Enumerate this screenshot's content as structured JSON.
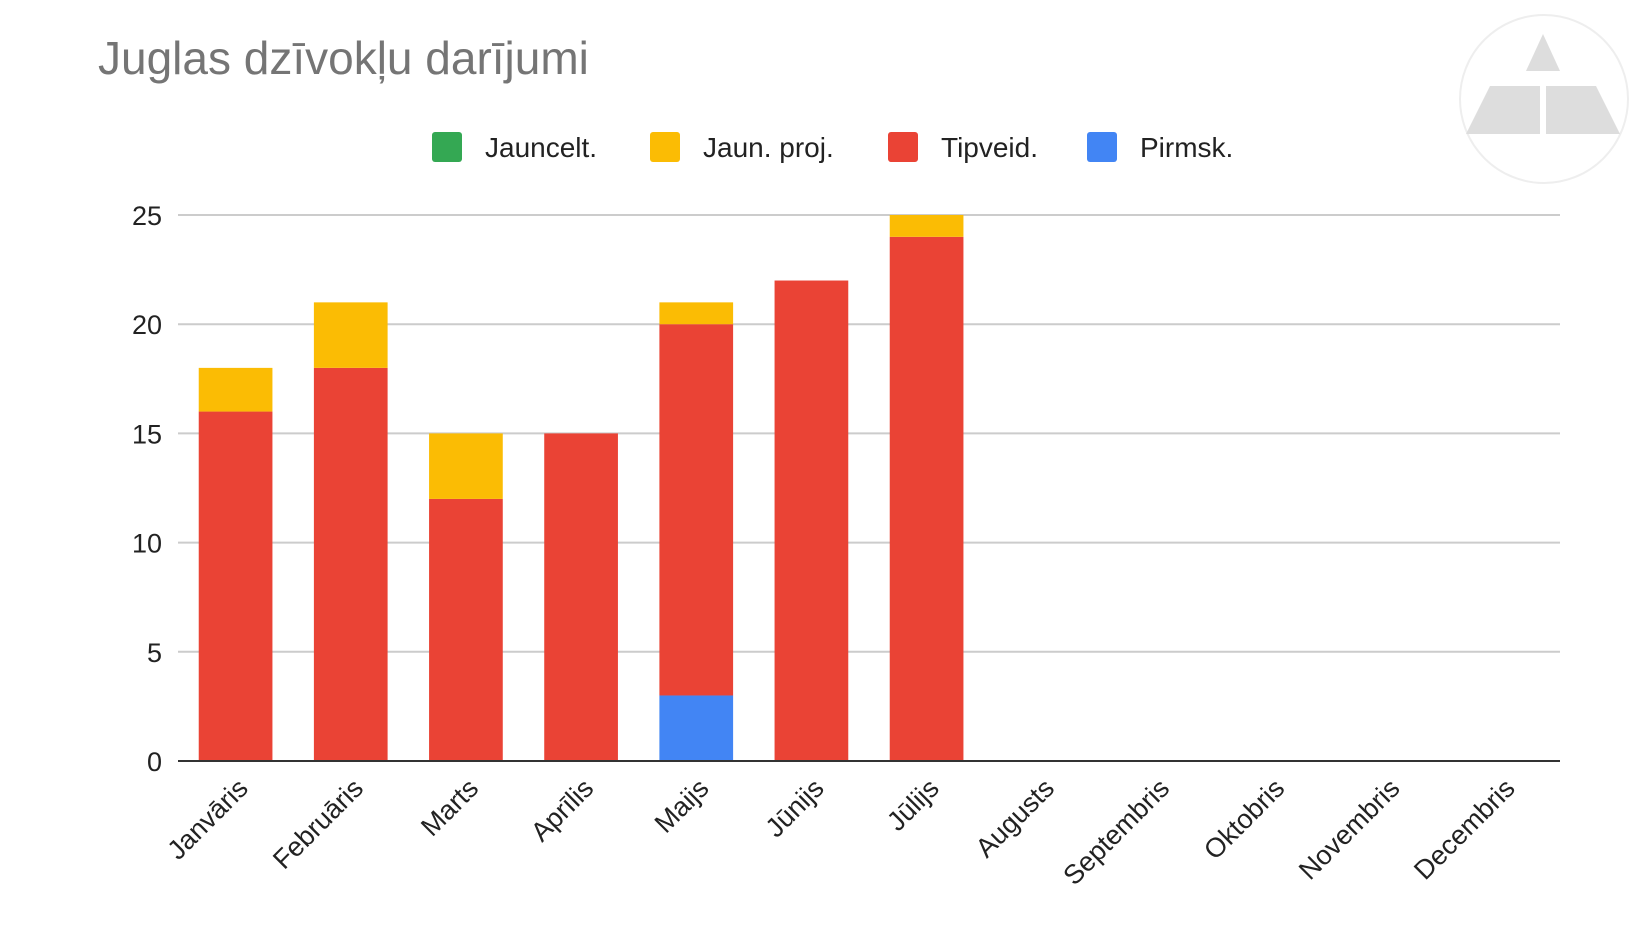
{
  "chart_data": {
    "type": "bar",
    "stacked": true,
    "title": "Juglas dzīvokļu darījumi",
    "xlabel": "",
    "ylabel": "",
    "ylim": [
      0,
      25
    ],
    "yticks": [
      0,
      5,
      10,
      15,
      20,
      25
    ],
    "grid": true,
    "legend_position": "top",
    "categories": [
      "Janvāris",
      "Februāris",
      "Marts",
      "Aprīlis",
      "Maijs",
      "Jūnijs",
      "Jūlijs",
      "Augusts",
      "Septembris",
      "Oktobris",
      "Novembris",
      "Decembris"
    ],
    "series": [
      {
        "name": "Pirmsk.",
        "color": "#4285f4",
        "values": [
          0,
          0,
          0,
          0,
          3,
          0,
          0,
          0,
          0,
          0,
          0,
          0
        ]
      },
      {
        "name": "Tipveid.",
        "color": "#ea4335",
        "values": [
          16,
          18,
          12,
          15,
          17,
          22,
          24,
          0,
          0,
          0,
          0,
          0
        ]
      },
      {
        "name": "Jaun. proj.",
        "color": "#fbbc04",
        "values": [
          2,
          3,
          3,
          0,
          1,
          0,
          1,
          0,
          0,
          0,
          0,
          0
        ]
      },
      {
        "name": "Jauncelt.",
        "color": "#34a853",
        "values": [
          0,
          0,
          0,
          0,
          0,
          0,
          0,
          0,
          0,
          0,
          0,
          0
        ]
      }
    ],
    "legend_order": [
      "Jauncelt.",
      "Jaun. proj.",
      "Tipveid.",
      "Pirmsk."
    ]
  },
  "logo": {
    "icon": "triangle-logo-icon",
    "color": "#dddddd"
  }
}
